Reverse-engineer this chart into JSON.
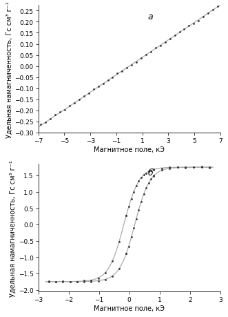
{
  "panel_a": {
    "label": "а",
    "xlabel": "Магнитное поле, кЭ",
    "ylabel": "Удельная намагниченность, Гс см³ г⁻¹",
    "xlim": [
      -7,
      7
    ],
    "ylim": [
      -0.3,
      0.275
    ],
    "xticks": [
      -7,
      -5,
      -3,
      -1,
      1,
      3,
      5,
      7
    ],
    "yticks": [
      -0.3,
      -0.25,
      -0.2,
      -0.15,
      -0.1,
      -0.05,
      0,
      0.05,
      0.1,
      0.15,
      0.2,
      0.25
    ],
    "line_color": "#aaaaaa",
    "dot_color": "#333333",
    "slope": 0.0393
  },
  "panel_b": {
    "label": "б",
    "xlabel": "Магнитное поле, кЭ",
    "ylabel": "Удельная намагниченность, Гс см³ г⁻¹",
    "xlim": [
      -3,
      3
    ],
    "ylim": [
      -2.05,
      1.85
    ],
    "xticks": [
      -3,
      -2,
      -1,
      0,
      1,
      2,
      3
    ],
    "yticks": [
      -2.0,
      -1.5,
      -1.0,
      -0.5,
      0,
      0.5,
      1.0,
      1.5
    ],
    "line_color": "#aaaaaa",
    "dot_color": "#333333",
    "Ms": 1.75,
    "Hc": 0.18,
    "k": 2.0
  }
}
